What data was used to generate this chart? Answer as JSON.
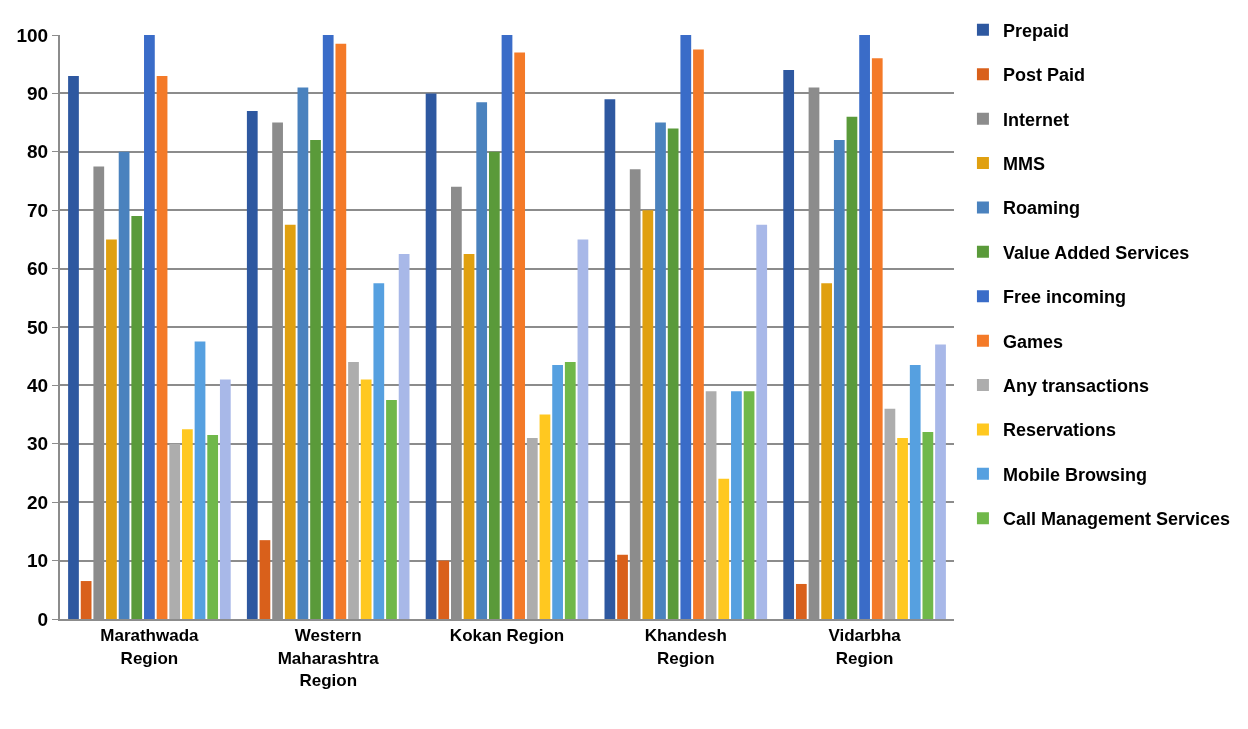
{
  "chart_data": {
    "type": "bar",
    "categories": [
      "Marathwada Region",
      "Western Maharashtra Region",
      "Kokan Region",
      "Khandesh Region",
      "Vidarbha Region"
    ],
    "series": [
      {
        "name": "Prepaid",
        "color": "#2e58a0",
        "values": [
          93,
          87,
          90,
          89,
          94
        ]
      },
      {
        "name": "Post Paid",
        "color": "#d9601b",
        "values": [
          6.5,
          13.5,
          10,
          11,
          6
        ]
      },
      {
        "name": "Internet",
        "color": "#8c8c8c",
        "values": [
          77.5,
          85,
          74,
          77,
          91
        ]
      },
      {
        "name": "MMS",
        "color": "#e0a010",
        "values": [
          65,
          67.5,
          62.5,
          70,
          57.5
        ]
      },
      {
        "name": "Roaming",
        "color": "#4a82be",
        "values": [
          80,
          91,
          88.5,
          85,
          82
        ]
      },
      {
        "name": "Value Added Services",
        "color": "#5a9a3a",
        "values": [
          69,
          82,
          80,
          84,
          86
        ]
      },
      {
        "name": "Free incoming",
        "color": "#3a6cc8",
        "values": [
          100,
          100,
          100,
          100,
          100
        ]
      },
      {
        "name": "Games",
        "color": "#f47a28",
        "values": [
          93,
          98.5,
          97,
          97.5,
          96
        ]
      },
      {
        "name": "Any transactions",
        "color": "#adadad",
        "values": [
          30,
          44,
          31,
          39,
          36
        ]
      },
      {
        "name": "Reservations",
        "color": "#ffc820",
        "values": [
          32.5,
          41,
          35,
          24,
          31
        ]
      },
      {
        "name": "Mobile Browsing",
        "color": "#56a0e0",
        "values": [
          47.5,
          57.5,
          43.5,
          39,
          43.5
        ]
      },
      {
        "name": "Call Management Services",
        "color": "#70b84a",
        "values": [
          31.5,
          37.5,
          44,
          39,
          32
        ]
      },
      {
        "color": "#a8b8e8",
        "values": [
          41,
          62.5,
          65,
          67.5,
          47
        ]
      }
    ],
    "ylim": [
      0,
      100
    ],
    "yticks": [
      0,
      10,
      20,
      30,
      40,
      50,
      60,
      70,
      80,
      90,
      100
    ],
    "grid": "y",
    "legend": "right"
  }
}
